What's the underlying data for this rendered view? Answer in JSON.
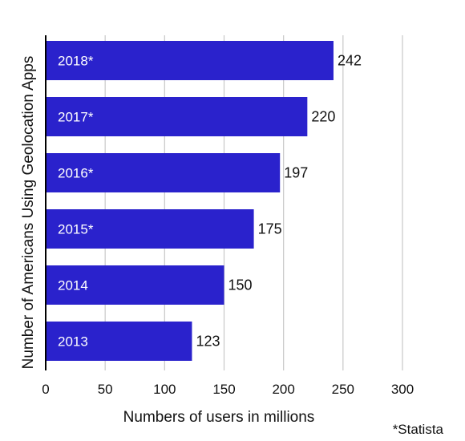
{
  "chart_data": {
    "type": "bar",
    "orientation": "horizontal",
    "categories": [
      "2018*",
      "2017*",
      "2016*",
      "2015*",
      "2014",
      "2013"
    ],
    "values": [
      242,
      220,
      197,
      175,
      150,
      123
    ],
    "xlabel": "Numbers of users in millions",
    "ylabel": "Number of Americans Using Geolocation Apps",
    "xlim": [
      0,
      300
    ],
    "xticks": [
      0,
      50,
      100,
      150,
      200,
      250,
      300
    ],
    "grid": "vertical",
    "bar_color": "#2a22cc",
    "source": "*Statista"
  }
}
